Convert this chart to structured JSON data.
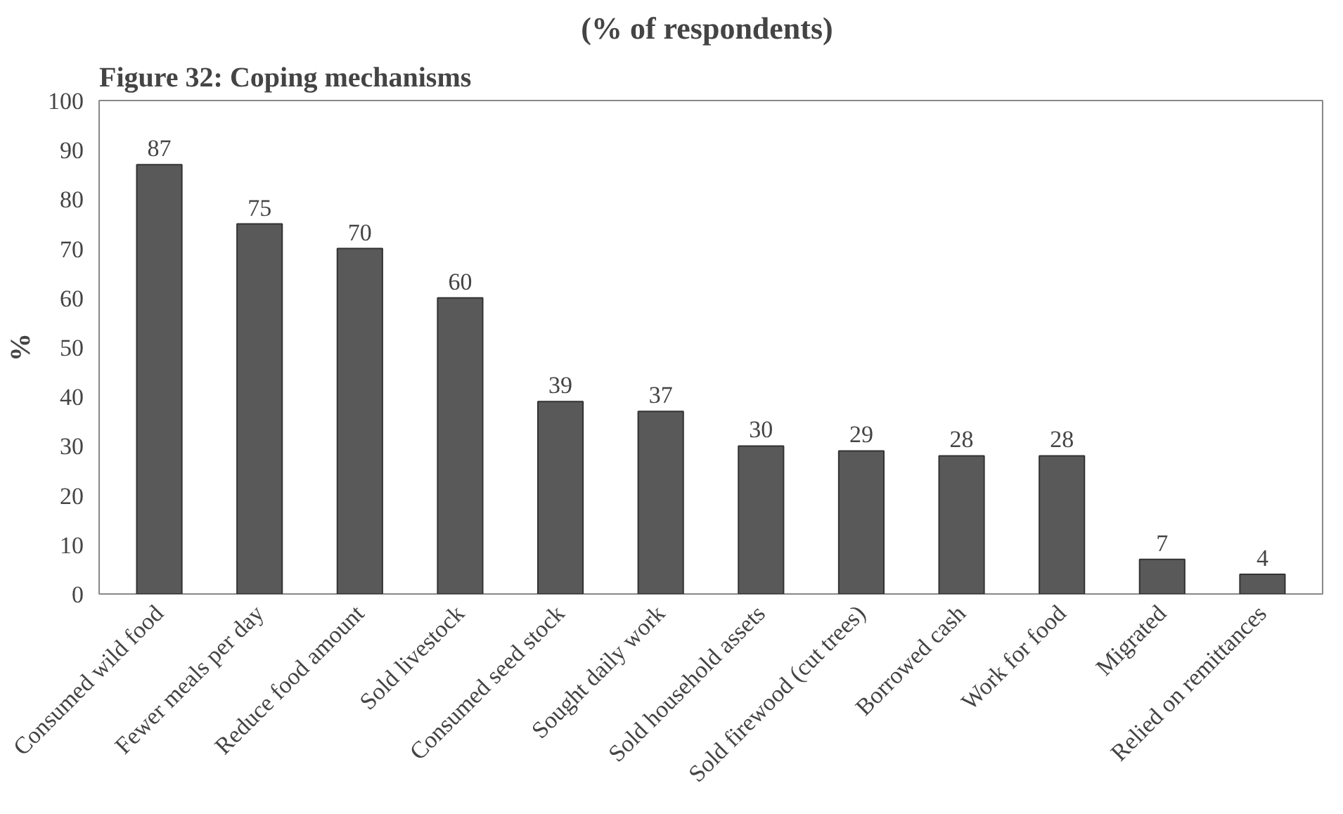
{
  "chart_data": {
    "type": "bar",
    "title": "Figure 32: Coping mechanisms",
    "subtitle": "(% of  respondents)",
    "ylabel": "%",
    "categories": [
      "Consumed wild food",
      "Fewer meals per day",
      "Reduce food amount",
      "Sold livestock",
      "Consumed seed stock",
      "Sought daily work",
      "Sold household assets",
      "Sold firewood (cut trees)",
      "Borrowed cash",
      "Work for food",
      "Migrated",
      "Relied on remittances"
    ],
    "values": [
      87,
      75,
      70,
      60,
      39,
      37,
      30,
      29,
      28,
      28,
      7,
      4
    ],
    "color": "#595959",
    "ylim": [
      0,
      100
    ],
    "yticks": [
      0,
      10,
      20,
      30,
      40,
      50,
      60,
      70,
      80,
      90,
      100
    ],
    "grid": false,
    "data_labels": true
  }
}
